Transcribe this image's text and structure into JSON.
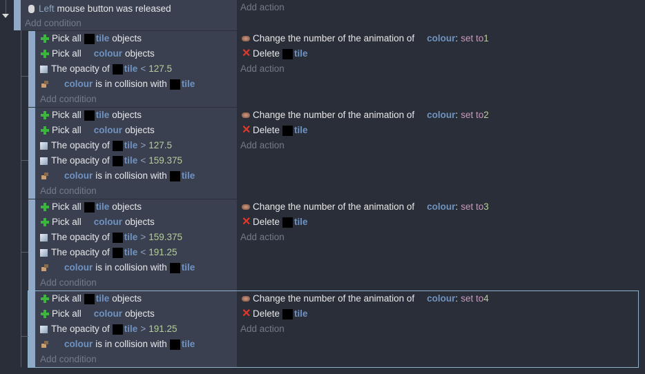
{
  "top_event": {
    "condition": {
      "icon": "mouse-icon",
      "button": "Left",
      "text": "mouse button was released"
    },
    "add_condition": "Add condition",
    "add_action": "Add action"
  },
  "labels": {
    "add_condition": "Add condition",
    "add_action": "Add action"
  },
  "colors": {
    "background": "#2a2e38",
    "condition_pane": "#3a4050",
    "event_bar": "#8fa9c7",
    "object": "#6f93c2",
    "number": "#b7cf9a",
    "selection": "#8fb3cc"
  },
  "sub_events": [
    {
      "selected": false,
      "conditions": [
        {
          "icon": "plus-icon",
          "parts": [
            [
              "t",
              "Pick all"
            ],
            [
              "b"
            ],
            [
              "o",
              "tile"
            ],
            [
              "t",
              "objects"
            ]
          ]
        },
        {
          "icon": "plus-icon",
          "parts": [
            [
              "t",
              "Pick all"
            ],
            [
              "s"
            ],
            [
              "o",
              "colour"
            ],
            [
              "t",
              "objects"
            ]
          ]
        },
        {
          "icon": "opacity-icon",
          "parts": [
            [
              "t",
              "The opacity of"
            ],
            [
              "b"
            ],
            [
              "o",
              "tile"
            ],
            [
              "p",
              "<"
            ],
            [
              "n",
              "127.5"
            ]
          ]
        },
        {
          "icon": "collision-icon",
          "parts": [
            [
              "s"
            ],
            [
              "o",
              "colour"
            ],
            [
              "t",
              "is in collision with"
            ],
            [
              "b"
            ],
            [
              "o",
              "tile"
            ]
          ]
        }
      ],
      "actions": [
        {
          "icon": "animation-icon",
          "parts": [
            [
              "t",
              "Change the number of the animation of"
            ],
            [
              "s"
            ],
            [
              "o",
              "colour"
            ],
            [
              "t",
              ":"
            ],
            [
              "x",
              "set to"
            ],
            [
              "n",
              "1"
            ]
          ]
        },
        {
          "icon": "delete-icon",
          "parts": [
            [
              "t",
              "Delete"
            ],
            [
              "b"
            ],
            [
              "o",
              "tile"
            ]
          ]
        }
      ]
    },
    {
      "selected": false,
      "conditions": [
        {
          "icon": "plus-icon",
          "parts": [
            [
              "t",
              "Pick all"
            ],
            [
              "b"
            ],
            [
              "o",
              "tile"
            ],
            [
              "t",
              "objects"
            ]
          ]
        },
        {
          "icon": "plus-icon",
          "parts": [
            [
              "t",
              "Pick all"
            ],
            [
              "s"
            ],
            [
              "o",
              "colour"
            ],
            [
              "t",
              "objects"
            ]
          ]
        },
        {
          "icon": "opacity-icon",
          "parts": [
            [
              "t",
              "The opacity of"
            ],
            [
              "b"
            ],
            [
              "o",
              "tile"
            ],
            [
              "p",
              ">"
            ],
            [
              "n",
              "127.5"
            ]
          ]
        },
        {
          "icon": "opacity-icon",
          "parts": [
            [
              "t",
              "The opacity of"
            ],
            [
              "b"
            ],
            [
              "o",
              "tile"
            ],
            [
              "p",
              "<"
            ],
            [
              "n",
              "159.375"
            ]
          ]
        },
        {
          "icon": "collision-icon",
          "parts": [
            [
              "s"
            ],
            [
              "o",
              "colour"
            ],
            [
              "t",
              "is in collision with"
            ],
            [
              "b"
            ],
            [
              "o",
              "tile"
            ]
          ]
        }
      ],
      "actions": [
        {
          "icon": "animation-icon",
          "parts": [
            [
              "t",
              "Change the number of the animation of"
            ],
            [
              "s"
            ],
            [
              "o",
              "colour"
            ],
            [
              "t",
              ":"
            ],
            [
              "x",
              "set to"
            ],
            [
              "n",
              "2"
            ]
          ]
        },
        {
          "icon": "delete-icon",
          "parts": [
            [
              "t",
              "Delete"
            ],
            [
              "b"
            ],
            [
              "o",
              "tile"
            ]
          ]
        }
      ]
    },
    {
      "selected": false,
      "conditions": [
        {
          "icon": "plus-icon",
          "parts": [
            [
              "t",
              "Pick all"
            ],
            [
              "b"
            ],
            [
              "o",
              "tile"
            ],
            [
              "t",
              "objects"
            ]
          ]
        },
        {
          "icon": "plus-icon",
          "parts": [
            [
              "t",
              "Pick all"
            ],
            [
              "s"
            ],
            [
              "o",
              "colour"
            ],
            [
              "t",
              "objects"
            ]
          ]
        },
        {
          "icon": "opacity-icon",
          "parts": [
            [
              "t",
              "The opacity of"
            ],
            [
              "b"
            ],
            [
              "o",
              "tile"
            ],
            [
              "p",
              ">"
            ],
            [
              "n",
              "159.375"
            ]
          ]
        },
        {
          "icon": "opacity-icon",
          "parts": [
            [
              "t",
              "The opacity of"
            ],
            [
              "b"
            ],
            [
              "o",
              "tile"
            ],
            [
              "p",
              "<"
            ],
            [
              "n",
              "191.25"
            ]
          ]
        },
        {
          "icon": "collision-icon",
          "parts": [
            [
              "s"
            ],
            [
              "o",
              "colour"
            ],
            [
              "t",
              "is in collision with"
            ],
            [
              "b"
            ],
            [
              "o",
              "tile"
            ]
          ]
        }
      ],
      "actions": [
        {
          "icon": "animation-icon",
          "parts": [
            [
              "t",
              "Change the number of the animation of"
            ],
            [
              "s"
            ],
            [
              "o",
              "colour"
            ],
            [
              "t",
              ":"
            ],
            [
              "x",
              "set to"
            ],
            [
              "n",
              "3"
            ]
          ]
        },
        {
          "icon": "delete-icon",
          "parts": [
            [
              "t",
              "Delete"
            ],
            [
              "b"
            ],
            [
              "o",
              "tile"
            ]
          ]
        }
      ]
    },
    {
      "selected": true,
      "conditions": [
        {
          "icon": "plus-icon",
          "parts": [
            [
              "t",
              "Pick all"
            ],
            [
              "b"
            ],
            [
              "o",
              "tile"
            ],
            [
              "t",
              "objects"
            ]
          ]
        },
        {
          "icon": "plus-icon",
          "parts": [
            [
              "t",
              "Pick all"
            ],
            [
              "s"
            ],
            [
              "o",
              "colour"
            ],
            [
              "t",
              "objects"
            ]
          ]
        },
        {
          "icon": "opacity-icon",
          "parts": [
            [
              "t",
              "The opacity of"
            ],
            [
              "b"
            ],
            [
              "o",
              "tile"
            ],
            [
              "p",
              ">"
            ],
            [
              "n",
              "191.25"
            ]
          ]
        },
        {
          "icon": "collision-icon",
          "parts": [
            [
              "s"
            ],
            [
              "o",
              "colour"
            ],
            [
              "t",
              "is in collision with"
            ],
            [
              "b"
            ],
            [
              "o",
              "tile"
            ]
          ]
        }
      ],
      "actions": [
        {
          "icon": "animation-icon",
          "parts": [
            [
              "t",
              "Change the number of the animation of"
            ],
            [
              "s"
            ],
            [
              "o",
              "colour"
            ],
            [
              "t",
              ":"
            ],
            [
              "x",
              "set to"
            ],
            [
              "n",
              "4"
            ]
          ]
        },
        {
          "icon": "delete-icon",
          "parts": [
            [
              "t",
              "Delete"
            ],
            [
              "b"
            ],
            [
              "o",
              "tile"
            ]
          ]
        }
      ]
    }
  ]
}
